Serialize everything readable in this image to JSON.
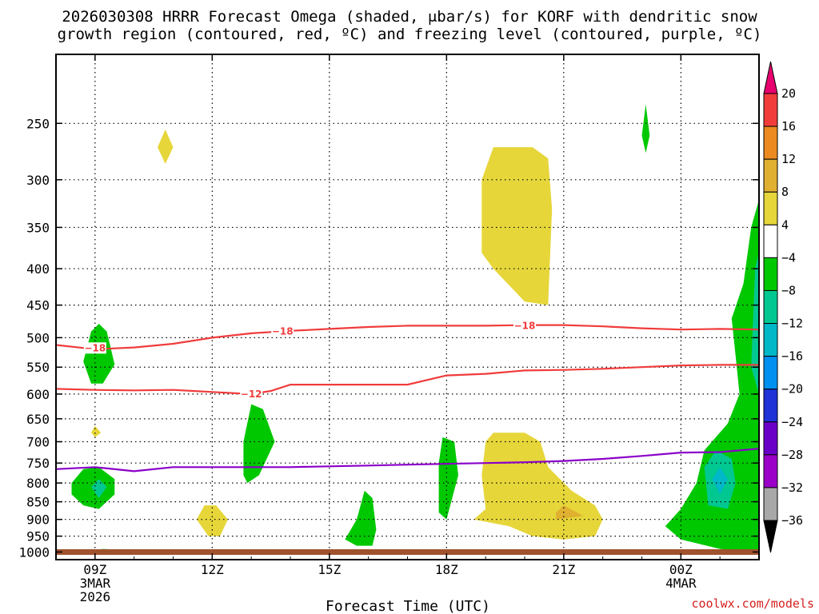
{
  "chart_data": {
    "type": "time-height",
    "title_line1": "2026030308 HRRR Forecast Omega (shaded, μbar/s) for KORF with dendritic snow",
    "title_line2": "growth region (contoured, red, ºC) and freezing level (contoured, purple, ºC)",
    "xlabel": "Forecast Time (UTC)",
    "credit": "coolwx.com/models",
    "x_ticks": [
      {
        "hour": 9,
        "lines": [
          "09Z",
          "3MAR",
          "2026"
        ]
      },
      {
        "hour": 12,
        "lines": [
          "12Z"
        ]
      },
      {
        "hour": 15,
        "lines": [
          "15Z"
        ]
      },
      {
        "hour": 18,
        "lines": [
          "18Z"
        ]
      },
      {
        "hour": 21,
        "lines": [
          "21Z"
        ]
      },
      {
        "hour": 24,
        "lines": [
          "00Z",
          "4MAR"
        ]
      }
    ],
    "x_range_hours": [
      8.0,
      26.0
    ],
    "y_ticks_hpa": [
      250,
      300,
      350,
      400,
      450,
      500,
      550,
      600,
      650,
      700,
      750,
      800,
      850,
      900,
      950,
      1000
    ],
    "y_range_hpa": [
      200,
      1025
    ],
    "y_scale": "log-pressure",
    "grid": "dotted",
    "colorbar": {
      "labels": [
        "20",
        "16",
        "12",
        "8",
        "4",
        "−4",
        "−8",
        "−12",
        "−16",
        "−20",
        "−24",
        "−28",
        "−32",
        "−36"
      ],
      "colors": [
        "#e8006e",
        "#f23c3c",
        "#ec8a20",
        "#e0b030",
        "#e6d63a",
        "#ffffff",
        "#00c800",
        "#00c890",
        "#00b8c8",
        "#0090f0",
        "#1e32d8",
        "#6a00c8",
        "#9a00c8",
        "#a8a8a8",
        "#000000"
      ]
    },
    "contours": [
      {
        "label": "−18",
        "color": "#f03c3c",
        "label_at": [
          [
            9.0,
            517
          ],
          [
            13.8,
            490
          ],
          [
            20.0,
            481
          ]
        ],
        "points": [
          [
            8.0,
            512
          ],
          [
            9.0,
            519
          ],
          [
            10.0,
            516
          ],
          [
            11.0,
            510
          ],
          [
            12.0,
            500
          ],
          [
            13.0,
            493
          ],
          [
            14.0,
            489
          ],
          [
            15.0,
            486
          ],
          [
            16.0,
            483
          ],
          [
            17.0,
            481
          ],
          [
            18.0,
            481
          ],
          [
            19.0,
            481
          ],
          [
            20.0,
            480
          ],
          [
            21.0,
            480
          ],
          [
            22.0,
            482
          ],
          [
            23.0,
            485
          ],
          [
            24.0,
            487
          ],
          [
            25.0,
            486
          ],
          [
            26.0,
            487
          ]
        ]
      },
      {
        "label": "−12",
        "color": "#f03c3c",
        "label_at": [
          [
            13.0,
            600
          ]
        ],
        "points": [
          [
            8.0,
            590
          ],
          [
            9.0,
            592
          ],
          [
            10.0,
            593
          ],
          [
            11.0,
            592
          ],
          [
            12.0,
            596
          ],
          [
            13.0,
            600
          ],
          [
            13.5,
            594
          ],
          [
            14.0,
            582
          ],
          [
            15.0,
            582
          ],
          [
            16.0,
            582
          ],
          [
            17.0,
            582
          ],
          [
            18.0,
            565
          ],
          [
            19.0,
            562
          ],
          [
            20.0,
            556
          ],
          [
            21.0,
            555
          ],
          [
            22.0,
            553
          ],
          [
            23.0,
            550
          ],
          [
            24.0,
            547
          ],
          [
            25.0,
            546
          ],
          [
            26.0,
            546
          ]
        ]
      },
      {
        "label": "0",
        "color": "#8a00c8",
        "label_at": [],
        "points": [
          [
            8.0,
            765
          ],
          [
            9.0,
            760
          ],
          [
            10.0,
            770
          ],
          [
            11.0,
            760
          ],
          [
            12.0,
            760
          ],
          [
            13.0,
            760
          ],
          [
            14.0,
            760
          ],
          [
            15.0,
            758
          ],
          [
            16.0,
            756
          ],
          [
            17.0,
            754
          ],
          [
            18.0,
            752
          ],
          [
            19.0,
            750
          ],
          [
            20.0,
            748
          ],
          [
            21.0,
            745
          ],
          [
            22.0,
            740
          ],
          [
            23.0,
            733
          ],
          [
            24.0,
            725
          ],
          [
            25.0,
            724
          ],
          [
            26.0,
            716
          ]
        ]
      }
    ],
    "omega_regions": [
      {
        "value": 4,
        "color": "#e6d63a",
        "points": [
          [
            10.6,
            270
          ],
          [
            10.8,
            255
          ],
          [
            11.0,
            270
          ],
          [
            10.8,
            285
          ]
        ]
      },
      {
        "value": 4,
        "color": "#e6d63a",
        "points": [
          [
            18.9,
            300
          ],
          [
            19.2,
            270
          ],
          [
            20.2,
            270
          ],
          [
            20.6,
            280
          ],
          [
            20.7,
            330
          ],
          [
            20.6,
            450
          ],
          [
            20.0,
            445
          ],
          [
            19.2,
            400
          ],
          [
            18.9,
            380
          ]
        ]
      },
      {
        "value": 4,
        "color": "#e6d63a",
        "points": [
          [
            8.9,
            680
          ],
          [
            9.0,
            665
          ],
          [
            9.15,
            680
          ],
          [
            9.0,
            690
          ]
        ]
      },
      {
        "value": 4,
        "color": "#e6d63a",
        "points": [
          [
            11.6,
            900
          ],
          [
            11.8,
            860
          ],
          [
            12.1,
            860
          ],
          [
            12.4,
            900
          ],
          [
            12.2,
            950
          ],
          [
            11.9,
            950
          ]
        ]
      },
      {
        "value": 4,
        "color": "#e6d63a",
        "points": [
          [
            19.0,
            700
          ],
          [
            19.2,
            680
          ],
          [
            20.0,
            680
          ],
          [
            20.4,
            700
          ],
          [
            20.6,
            760
          ],
          [
            21.2,
            820
          ],
          [
            21.8,
            860
          ],
          [
            22.0,
            900
          ],
          [
            21.8,
            950
          ],
          [
            21.0,
            960
          ],
          [
            20.2,
            950
          ],
          [
            19.6,
            920
          ],
          [
            18.7,
            900
          ],
          [
            19.0,
            870
          ],
          [
            18.9,
            780
          ]
        ]
      },
      {
        "value": 8,
        "color": "#e0b030",
        "points": [
          [
            20.8,
            880
          ],
          [
            21.0,
            860
          ],
          [
            21.5,
            890
          ],
          [
            20.8,
            900
          ]
        ]
      },
      {
        "value": -4,
        "color": "#00c800",
        "points": [
          [
            23.0,
            260
          ],
          [
            23.1,
            235
          ],
          [
            23.2,
            260
          ],
          [
            23.1,
            275
          ]
        ]
      },
      {
        "value": -4,
        "color": "#00c800",
        "points": [
          [
            8.7,
            540
          ],
          [
            8.9,
            490
          ],
          [
            9.1,
            478
          ],
          [
            9.3,
            490
          ],
          [
            9.5,
            545
          ],
          [
            9.2,
            580
          ],
          [
            8.9,
            580
          ]
        ]
      },
      {
        "value": -4,
        "color": "#00c800",
        "points": [
          [
            8.4,
            800
          ],
          [
            8.7,
            765
          ],
          [
            9.1,
            760
          ],
          [
            9.5,
            790
          ],
          [
            9.5,
            830
          ],
          [
            9.1,
            870
          ],
          [
            8.7,
            860
          ],
          [
            8.4,
            830
          ]
        ]
      },
      {
        "value": -4,
        "color": "#00c800",
        "points": [
          [
            8.8,
            1000
          ],
          [
            9.2,
            990
          ],
          [
            10.0,
            995
          ],
          [
            9.8,
            1005
          ],
          [
            9.0,
            1008
          ]
        ]
      },
      {
        "value": -4,
        "color": "#00c800",
        "points": [
          [
            12.8,
            700
          ],
          [
            13.0,
            620
          ],
          [
            13.3,
            630
          ],
          [
            13.6,
            700
          ],
          [
            13.2,
            780
          ],
          [
            12.9,
            800
          ],
          [
            12.8,
            780
          ]
        ]
      },
      {
        "value": -4,
        "color": "#00c800",
        "points": [
          [
            15.7,
            900
          ],
          [
            15.9,
            820
          ],
          [
            16.1,
            840
          ],
          [
            16.2,
            930
          ],
          [
            16.1,
            980
          ],
          [
            15.7,
            980
          ],
          [
            15.4,
            960
          ]
        ]
      },
      {
        "value": -4,
        "color": "#00c800",
        "points": [
          [
            17.8,
            750
          ],
          [
            17.9,
            690
          ],
          [
            18.2,
            700
          ],
          [
            18.3,
            780
          ],
          [
            18.0,
            900
          ],
          [
            17.8,
            880
          ]
        ]
      },
      {
        "value": -4,
        "color": "#00c800",
        "points": [
          [
            25.6,
            420
          ],
          [
            25.8,
            350
          ],
          [
            26.0,
            320
          ],
          [
            26.0,
            1000
          ],
          [
            25.0,
            990
          ],
          [
            24.0,
            960
          ],
          [
            23.6,
            920
          ],
          [
            24.0,
            870
          ],
          [
            24.4,
            800
          ],
          [
            24.6,
            720
          ],
          [
            25.2,
            660
          ],
          [
            25.5,
            600
          ],
          [
            25.4,
            530
          ],
          [
            25.3,
            470
          ]
        ]
      },
      {
        "value": -8,
        "color": "#00c890",
        "points": [
          [
            8.9,
            810
          ],
          [
            9.1,
            790
          ],
          [
            9.3,
            810
          ],
          [
            9.1,
            840
          ]
        ]
      },
      {
        "value": -8,
        "color": "#00c890",
        "points": [
          [
            24.6,
            760
          ],
          [
            24.9,
            720
          ],
          [
            25.3,
            740
          ],
          [
            25.4,
            800
          ],
          [
            25.2,
            870
          ],
          [
            24.7,
            860
          ]
        ]
      },
      {
        "value": -8,
        "color": "#00c890",
        "points": [
          [
            25.9,
            400
          ],
          [
            26.0,
            380
          ],
          [
            26.0,
            600
          ],
          [
            25.8,
            550
          ]
        ]
      },
      {
        "value": -12,
        "color": "#00b8c8",
        "points": [
          [
            24.8,
            790
          ],
          [
            25.0,
            760
          ],
          [
            25.2,
            790
          ],
          [
            25.0,
            830
          ]
        ]
      }
    ]
  }
}
